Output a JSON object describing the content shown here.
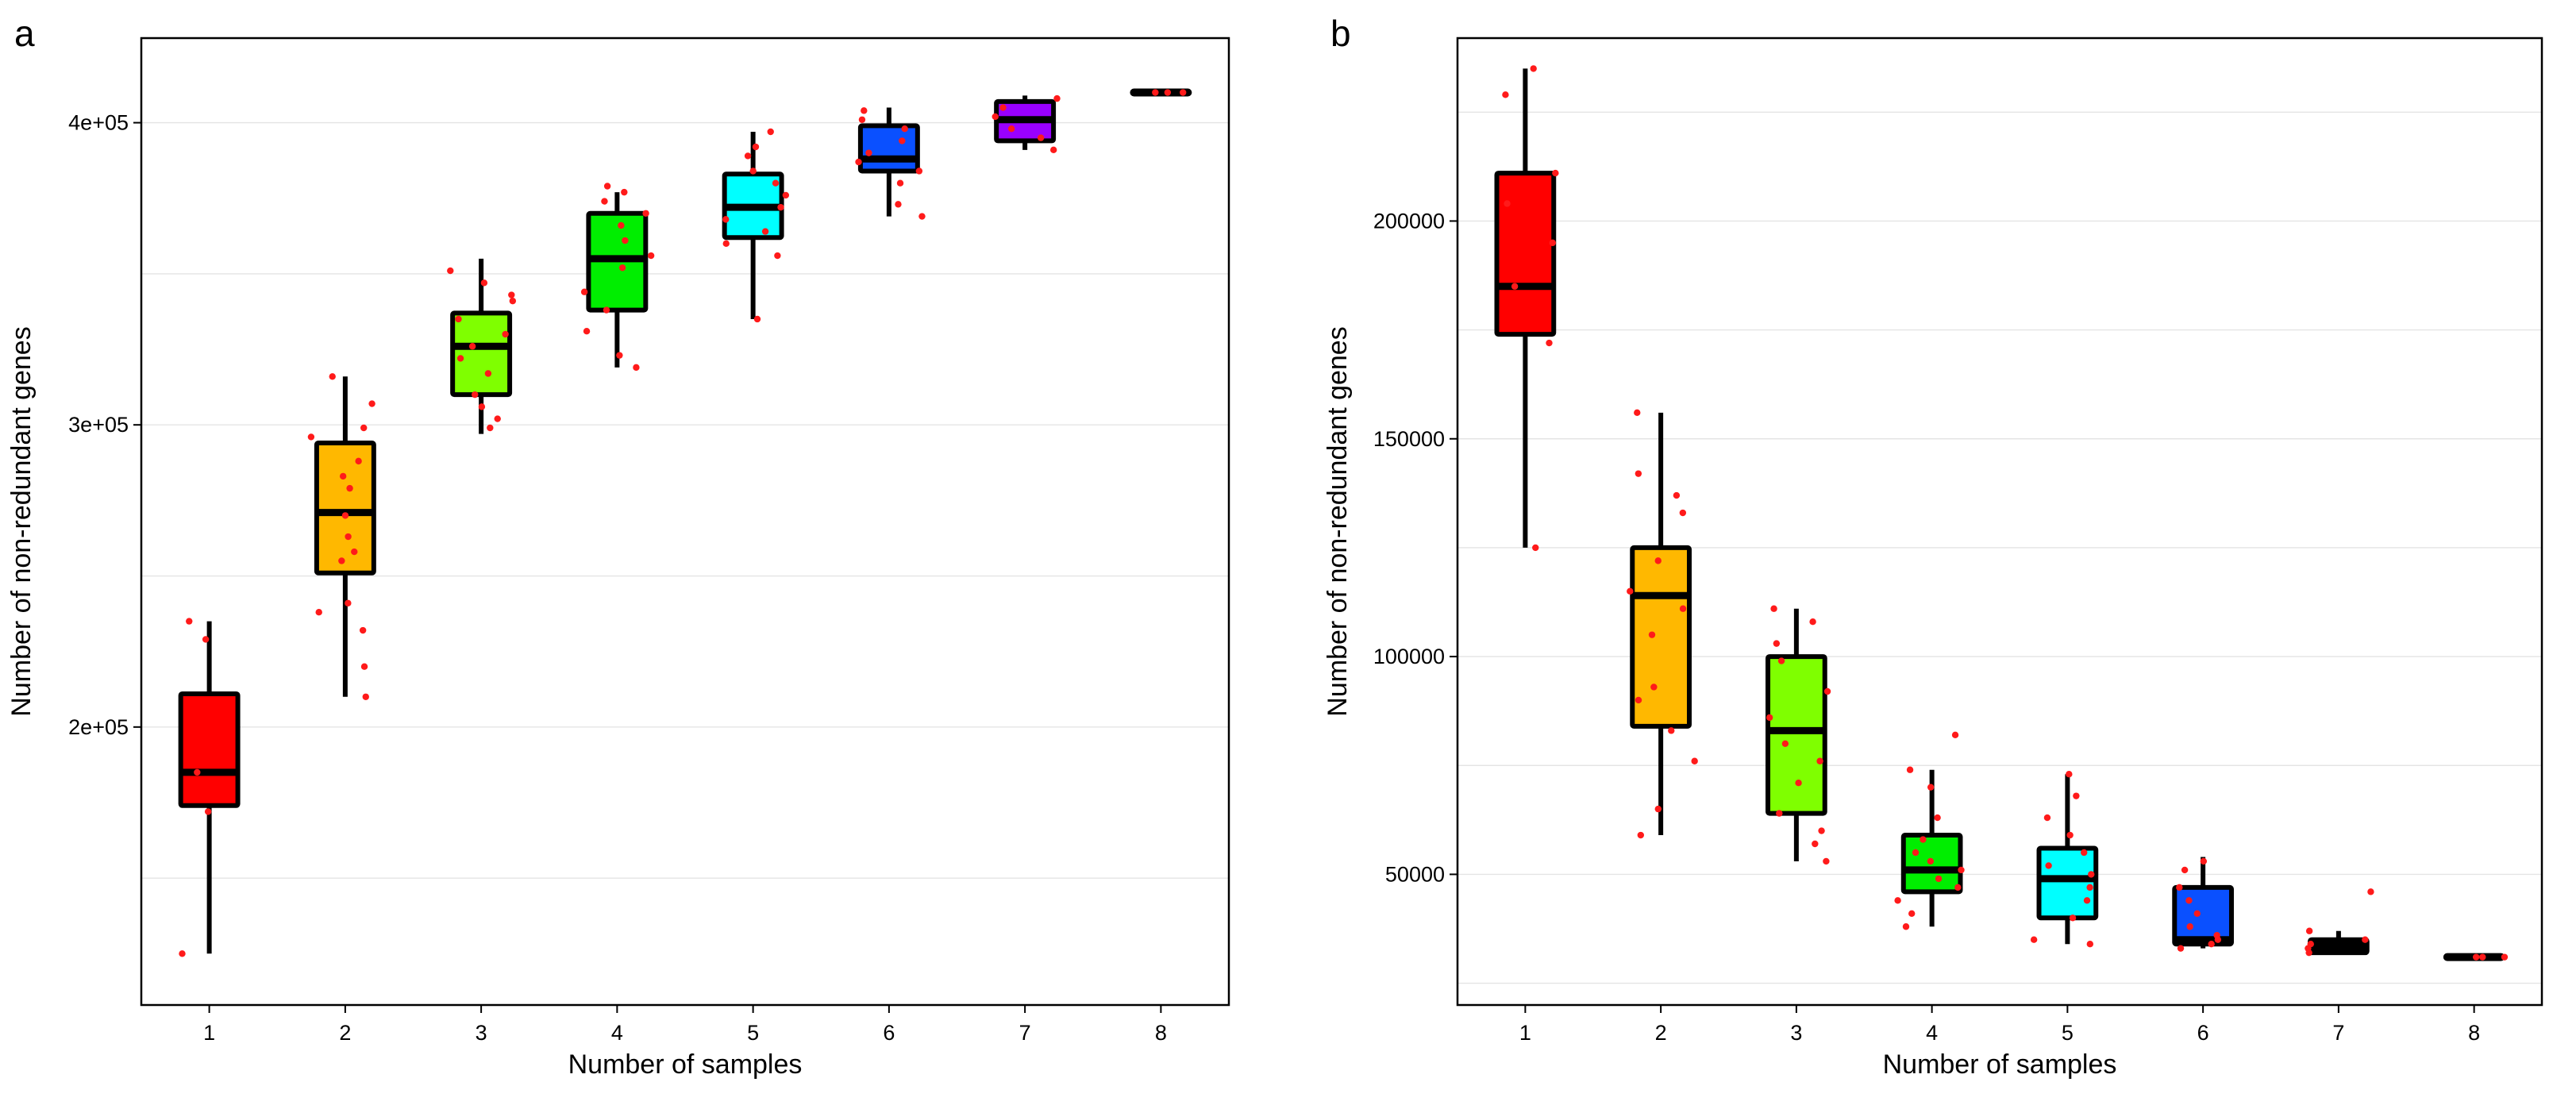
{
  "chart_data": [
    {
      "panel": "a",
      "type": "boxplot",
      "title": "",
      "xlabel": "Number of samples",
      "ylabel": "Number of non-redundant genes",
      "categories": [
        "1",
        "2",
        "3",
        "4",
        "5",
        "6",
        "7",
        "8"
      ],
      "ylim": [
        108000,
        428000
      ],
      "yticks": [
        200000,
        300000,
        400000
      ],
      "ytick_labels": [
        "2e+05",
        "3e+05",
        "4e+05"
      ],
      "grid": true,
      "box_colors": [
        "#ff0000",
        "#ffb800",
        "#7fff00",
        "#00ee00",
        "#00ffff",
        "#0a50ff",
        "#9900ff",
        "#000000"
      ],
      "boxes": [
        {
          "whisker_low": 125000,
          "q1": 174000,
          "median": 185000,
          "q3": 211000,
          "whisker_high": 235000
        },
        {
          "whisker_low": 210000,
          "q1": 251000,
          "median": 271000,
          "q3": 294000,
          "whisker_high": 316000
        },
        {
          "whisker_low": 297000,
          "q1": 310000,
          "median": 326000,
          "q3": 337000,
          "whisker_high": 355000
        },
        {
          "whisker_low": 319000,
          "q1": 338000,
          "median": 355000,
          "q3": 370000,
          "whisker_high": 377000
        },
        {
          "whisker_low": 335000,
          "q1": 362000,
          "median": 372000,
          "q3": 383000,
          "whisker_high": 397000
        },
        {
          "whisker_low": 369000,
          "q1": 384000,
          "median": 388000,
          "q3": 399000,
          "whisker_high": 405000
        },
        {
          "whisker_low": 391000,
          "q1": 394000,
          "median": 401000,
          "q3": 407000,
          "whisker_high": 409000
        },
        {
          "whisker_low": 410000,
          "q1": 410000,
          "median": 410000,
          "q3": 410000,
          "whisker_high": 410000
        }
      ],
      "points": [
        [
          125000,
          172000,
          185000,
          229000,
          235000
        ],
        [
          210000,
          220000,
          232000,
          238000,
          241000,
          255000,
          258000,
          263000,
          270000,
          279000,
          283000,
          288000,
          296000,
          299000,
          307000,
          316000
        ],
        [
          299000,
          302000,
          306000,
          310000,
          317000,
          322000,
          326000,
          330000,
          335000,
          341000,
          343000,
          347000,
          351000
        ],
        [
          319000,
          323000,
          331000,
          338000,
          344000,
          352000,
          356000,
          361000,
          366000,
          370000,
          374000,
          377000,
          379000
        ],
        [
          335000,
          356000,
          360000,
          364000,
          368000,
          372000,
          376000,
          380000,
          384000,
          389000,
          392000,
          397000
        ],
        [
          369000,
          373000,
          380000,
          384000,
          387000,
          390000,
          394000,
          398000,
          401000,
          404000
        ],
        [
          391000,
          395000,
          398000,
          402000,
          405000,
          408000
        ],
        [
          410000,
          410000,
          410000
        ]
      ]
    },
    {
      "panel": "b",
      "type": "boxplot",
      "title": "",
      "xlabel": "Number of samples",
      "ylabel": "Number of non-redundant genes",
      "categories": [
        "1",
        "2",
        "3",
        "4",
        "5",
        "6",
        "7",
        "8"
      ],
      "ylim": [
        20000,
        242000
      ],
      "yticks": [
        50000,
        100000,
        150000,
        200000
      ],
      "ytick_labels": [
        "50000",
        "100000",
        "150000",
        "200000"
      ],
      "grid": true,
      "box_colors": [
        "#ff0000",
        "#ffb800",
        "#7fff00",
        "#00ee00",
        "#00ffff",
        "#0a50ff",
        "#000000",
        "#000000"
      ],
      "boxes": [
        {
          "whisker_low": 125000,
          "q1": 174000,
          "median": 185000,
          "q3": 211000,
          "whisker_high": 235000
        },
        {
          "whisker_low": 59000,
          "q1": 84000,
          "median": 114000,
          "q3": 125000,
          "whisker_high": 156000
        },
        {
          "whisker_low": 53000,
          "q1": 64000,
          "median": 83000,
          "q3": 100000,
          "whisker_high": 111000
        },
        {
          "whisker_low": 38000,
          "q1": 46000,
          "median": 51000,
          "q3": 59000,
          "whisker_high": 74000
        },
        {
          "whisker_low": 34000,
          "q1": 40000,
          "median": 49000,
          "q3": 56000,
          "whisker_high": 73000
        },
        {
          "whisker_low": 33000,
          "q1": 34000,
          "median": 35000,
          "q3": 47000,
          "whisker_high": 54000
        },
        {
          "whisker_low": 32000,
          "q1": 32000,
          "median": 34000,
          "q3": 35000,
          "whisker_high": 37000
        },
        {
          "whisker_low": 31000,
          "q1": 31000,
          "median": 31000,
          "q3": 31000,
          "whisker_high": 31000
        }
      ],
      "points": [
        [
          125000,
          172000,
          185000,
          195000,
          204000,
          211000,
          229000,
          235000
        ],
        [
          59000,
          65000,
          76000,
          83000,
          90000,
          93000,
          105000,
          111000,
          115000,
          122000,
          133000,
          137000,
          142000,
          156000
        ],
        [
          53000,
          57000,
          60000,
          64000,
          71000,
          76000,
          80000,
          86000,
          92000,
          99000,
          103000,
          108000,
          111000
        ],
        [
          38000,
          41000,
          44000,
          47000,
          49000,
          51000,
          53000,
          55000,
          58000,
          63000,
          70000,
          74000,
          82000
        ],
        [
          34000,
          35000,
          40000,
          44000,
          47000,
          50000,
          52000,
          55000,
          59000,
          63000,
          68000,
          73000
        ],
        [
          33000,
          34000,
          35000,
          36000,
          38000,
          41000,
          44000,
          47000,
          51000,
          53000
        ],
        [
          32000,
          33000,
          34000,
          35000,
          37000,
          46000
        ],
        [
          31000,
          31000,
          31000
        ]
      ]
    }
  ]
}
